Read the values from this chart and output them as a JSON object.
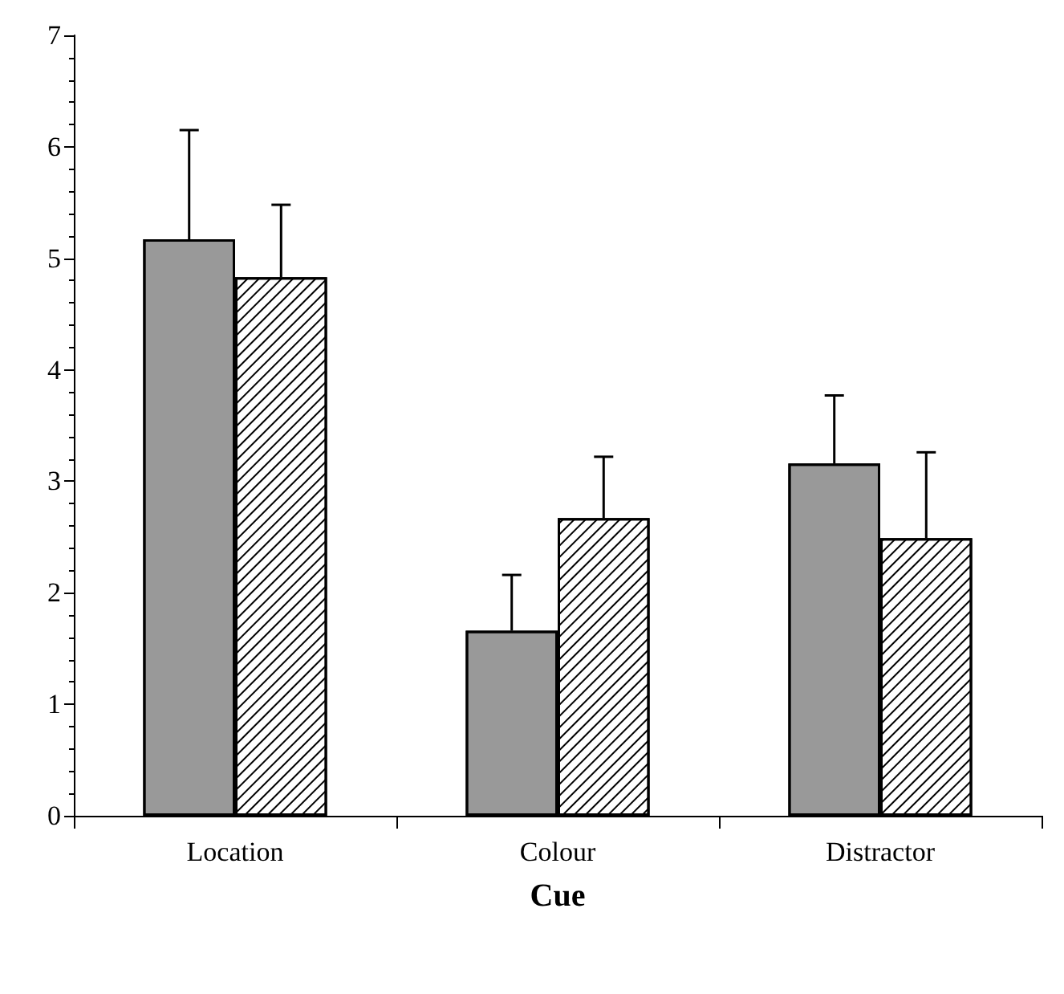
{
  "chart_data": {
    "type": "bar",
    "xlabel": "Cue",
    "categories": [
      "Location",
      "Colour",
      "Distractor"
    ],
    "series": [
      {
        "color": "#999999",
        "values": [
          5.17,
          1.66,
          3.16
        ],
        "errors": [
          [
            5.17,
            6.15
          ],
          [
            1.66,
            2.16
          ],
          [
            3.16,
            3.77
          ]
        ]
      },
      {
        "color": "#ffffff",
        "values": [
          4.83,
          2.67,
          2.49
        ],
        "errors": [
          [
            4.83,
            5.48
          ],
          [
            2.67,
            3.22
          ],
          [
            2.49,
            3.26
          ]
        ]
      }
    ],
    "ylim": [
      0,
      7
    ],
    "yticks": [
      0,
      1,
      2,
      3,
      4,
      5,
      6,
      7
    ],
    "grid": false
  }
}
